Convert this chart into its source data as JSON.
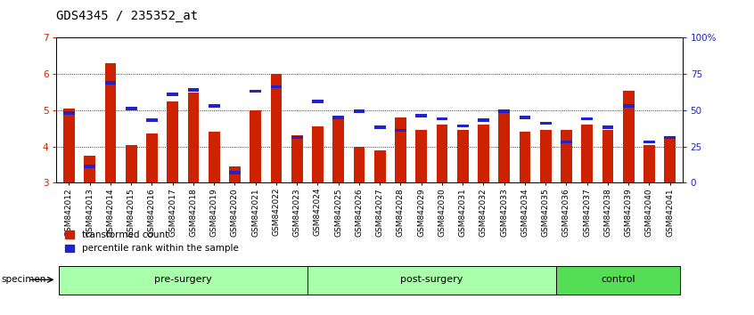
{
  "title": "GDS4345 / 235352_at",
  "samples": [
    "GSM842012",
    "GSM842013",
    "GSM842014",
    "GSM842015",
    "GSM842016",
    "GSM842017",
    "GSM842018",
    "GSM842019",
    "GSM842020",
    "GSM842021",
    "GSM842022",
    "GSM842023",
    "GSM842024",
    "GSM842025",
    "GSM842026",
    "GSM842027",
    "GSM842028",
    "GSM842029",
    "GSM842030",
    "GSM842031",
    "GSM842032",
    "GSM842033",
    "GSM842034",
    "GSM842035",
    "GSM842036",
    "GSM842037",
    "GSM842038",
    "GSM842039",
    "GSM842040",
    "GSM842041"
  ],
  "transformed_count": [
    5.05,
    3.75,
    6.3,
    4.05,
    4.35,
    5.25,
    5.5,
    4.4,
    3.45,
    5.0,
    6.0,
    4.3,
    4.55,
    4.75,
    4.0,
    3.9,
    4.8,
    4.45,
    4.6,
    4.45,
    4.6,
    5.0,
    4.4,
    4.45,
    4.45,
    4.6,
    4.45,
    5.55,
    4.05,
    4.2
  ],
  "percentile_rank": [
    47,
    10,
    68,
    50,
    42,
    60,
    63,
    52,
    6,
    62,
    65,
    30,
    55,
    44,
    48,
    37,
    35,
    45,
    43,
    38,
    42,
    48,
    44,
    40,
    27,
    43,
    37,
    52,
    27,
    30
  ],
  "group_defs": [
    {
      "label": "pre-surgery",
      "start": 0,
      "end": 11,
      "color": "#AAFFAA"
    },
    {
      "label": "post-surgery",
      "start": 12,
      "end": 23,
      "color": "#AAFFAA"
    },
    {
      "label": "control",
      "start": 24,
      "end": 29,
      "color": "#55DD55"
    }
  ],
  "ylim_left": [
    3,
    7
  ],
  "ylim_right": [
    0,
    100
  ],
  "yticks_left": [
    3,
    4,
    5,
    6,
    7
  ],
  "yticks_right": [
    0,
    25,
    50,
    75,
    100
  ],
  "bar_color_red": "#CC2200",
  "bar_color_blue": "#2222CC",
  "bg_color": "#FFFFFF",
  "title_fontsize": 10,
  "tick_fontsize": 6.5,
  "group_fontsize": 8,
  "legend_fontsize": 7.5,
  "grid_color": "#000000",
  "left_tick_color": "#CC2200",
  "right_tick_color": "#2222CC",
  "bar_width": 0.55
}
